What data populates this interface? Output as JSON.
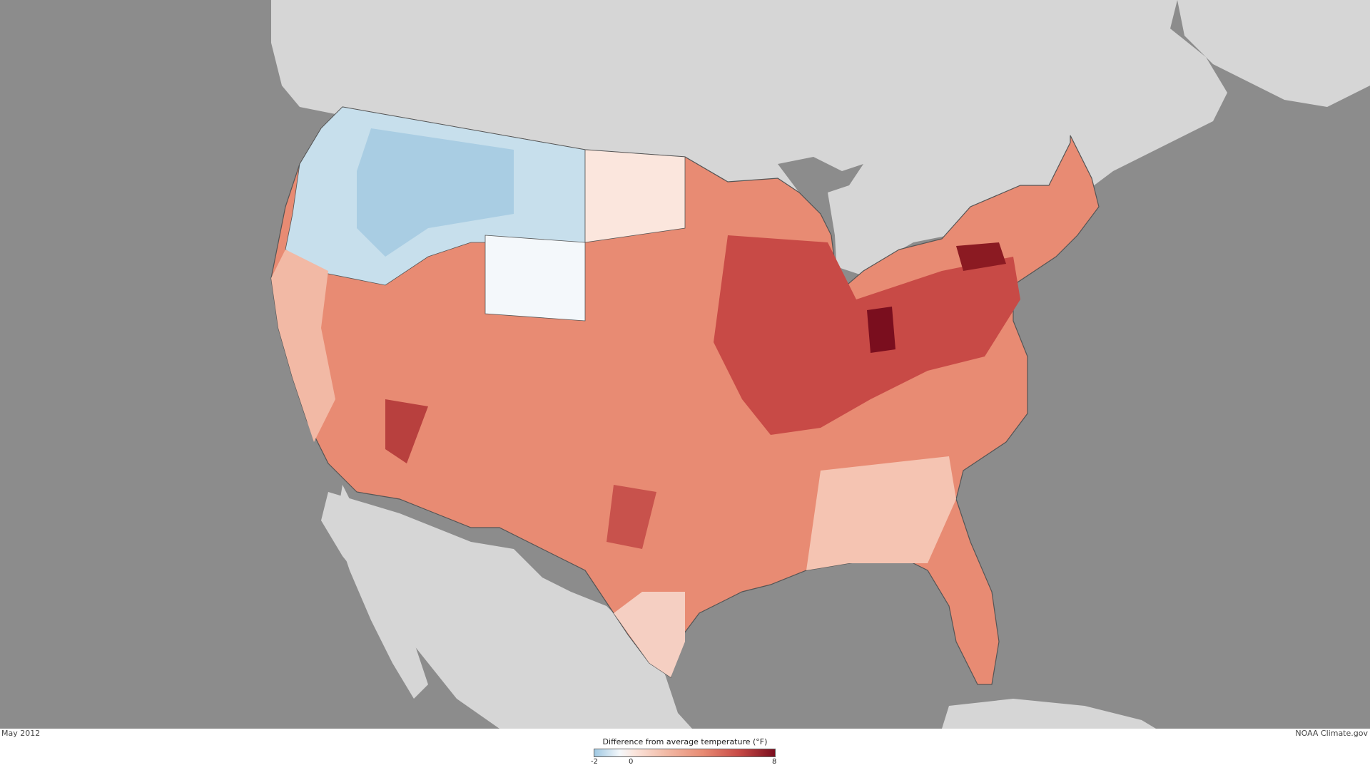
{
  "map": {
    "date_label": "May 2012",
    "credit": "NOAA Climate.gov",
    "colors": {
      "ocean": "#8c8c8c",
      "land": "#d6d6d6",
      "border": "#555555",
      "cold": "#a9cde3",
      "neutral": "#ffffff",
      "warm": "#e88b73",
      "hot": "#7a0e1e"
    }
  },
  "legend": {
    "title": "Difference from average temperature (°F)",
    "ticks": [
      "-2",
      "0",
      "8"
    ]
  }
}
